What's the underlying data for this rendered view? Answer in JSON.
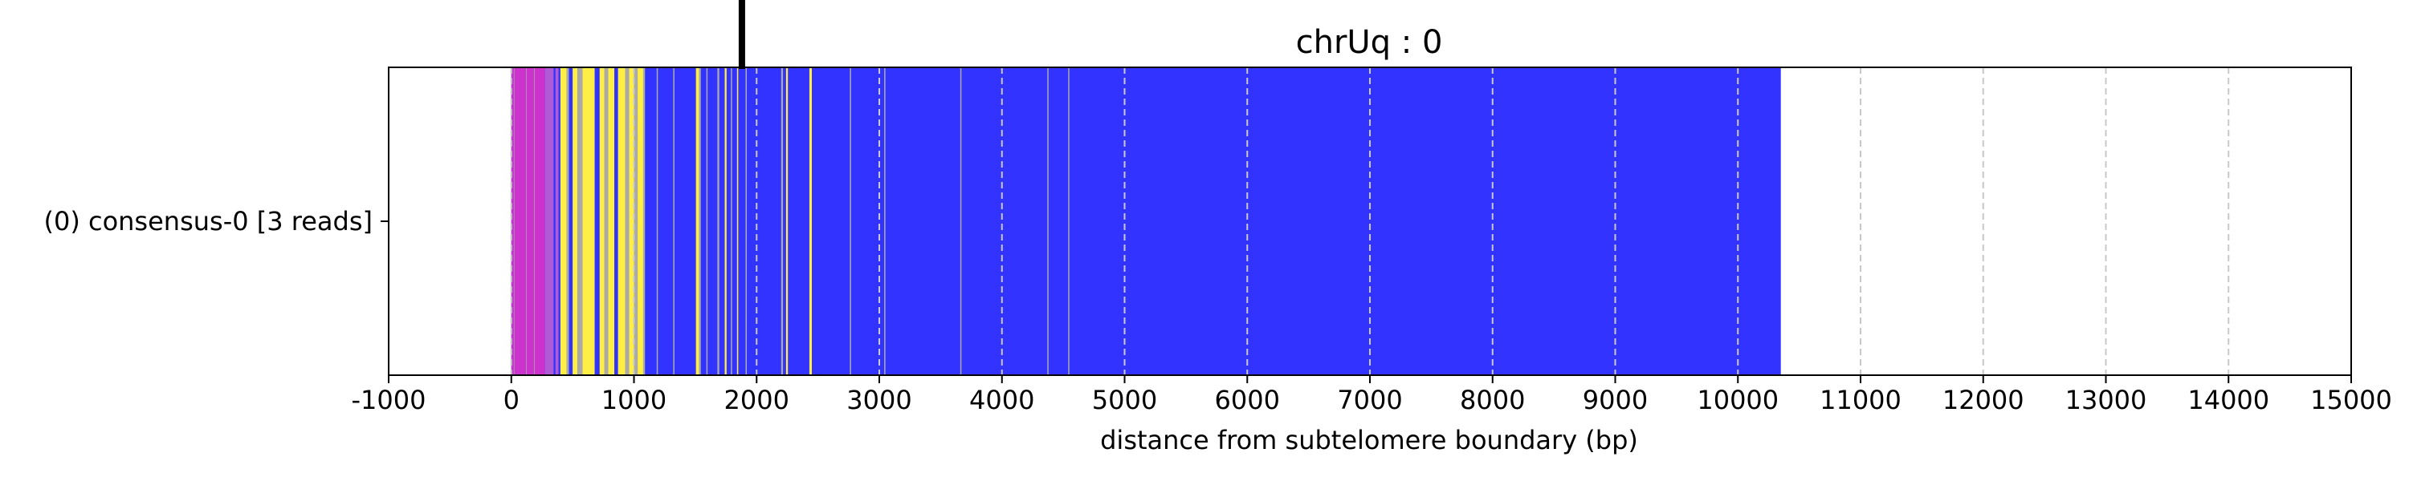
{
  "chart_data": {
    "type": "bar",
    "title": "chrUq : 0",
    "xlabel": "distance from subtelomere boundary (bp)",
    "ylabel": "",
    "xlim": [
      -1000,
      15000
    ],
    "x_ticks": [
      "-1000",
      "0",
      "1000",
      "2000",
      "3000",
      "4000",
      "5000",
      "6000",
      "7000",
      "8000",
      "9000",
      "10000",
      "11000",
      "12000",
      "13000",
      "14000",
      "15000"
    ],
    "grid": "vertical dashed lines at x ticks",
    "tracks": [
      {
        "label": "(0) consensus-0 [3 reads]",
        "start": 0,
        "end": 10350
      }
    ],
    "marker_x": 1880,
    "colors": {
      "base": "#3333ff",
      "magenta": "#cc33cc",
      "violet": "#b05bd6",
      "yellow": "#ffee44",
      "grey": "#aaaaaa"
    },
    "segments": [
      {
        "start": 0,
        "end": 20,
        "color": "#cc33cc"
      },
      {
        "start": 20,
        "end": 25,
        "color": "#aaaaaa"
      },
      {
        "start": 25,
        "end": 120,
        "color": "#cc33cc"
      },
      {
        "start": 120,
        "end": 125,
        "color": "#aaaaaa"
      },
      {
        "start": 125,
        "end": 185,
        "color": "#cc33cc"
      },
      {
        "start": 185,
        "end": 190,
        "color": "#aaaaaa"
      },
      {
        "start": 190,
        "end": 275,
        "color": "#cc33cc"
      },
      {
        "start": 275,
        "end": 345,
        "color": "#b05bd6"
      },
      {
        "start": 345,
        "end": 360,
        "color": "#3333ff"
      },
      {
        "start": 360,
        "end": 385,
        "color": "#b05bd6"
      },
      {
        "start": 385,
        "end": 400,
        "color": "#3333ff"
      },
      {
        "start": 400,
        "end": 450,
        "color": "#ffee44"
      },
      {
        "start": 450,
        "end": 470,
        "color": "#aaaaaa"
      },
      {
        "start": 470,
        "end": 500,
        "color": "#3333ff"
      },
      {
        "start": 500,
        "end": 540,
        "color": "#ffee44"
      },
      {
        "start": 540,
        "end": 580,
        "color": "#aaaaaa"
      },
      {
        "start": 580,
        "end": 680,
        "color": "#ffee44"
      },
      {
        "start": 680,
        "end": 720,
        "color": "#3333ff"
      },
      {
        "start": 720,
        "end": 760,
        "color": "#ffee44"
      },
      {
        "start": 760,
        "end": 790,
        "color": "#aaaaaa"
      },
      {
        "start": 790,
        "end": 840,
        "color": "#ffee44"
      },
      {
        "start": 840,
        "end": 870,
        "color": "#3333ff"
      },
      {
        "start": 870,
        "end": 930,
        "color": "#ffee44"
      },
      {
        "start": 930,
        "end": 960,
        "color": "#aaaaaa"
      },
      {
        "start": 960,
        "end": 1000,
        "color": "#ffee44"
      },
      {
        "start": 1000,
        "end": 1030,
        "color": "#aaaaaa"
      },
      {
        "start": 1030,
        "end": 1075,
        "color": "#ffee44"
      },
      {
        "start": 1075,
        "end": 1090,
        "color": "#aaaaaa"
      },
      {
        "start": 1185,
        "end": 1195,
        "color": "#aaaaaa"
      },
      {
        "start": 1320,
        "end": 1330,
        "color": "#aaaaaa"
      },
      {
        "start": 1505,
        "end": 1530,
        "color": "#ffee44"
      },
      {
        "start": 1530,
        "end": 1545,
        "color": "#aaaaaa"
      },
      {
        "start": 1590,
        "end": 1600,
        "color": "#aaaaaa"
      },
      {
        "start": 1680,
        "end": 1695,
        "color": "#aaaaaa"
      },
      {
        "start": 1740,
        "end": 1755,
        "color": "#ffee44"
      },
      {
        "start": 1790,
        "end": 1800,
        "color": "#aaaaaa"
      },
      {
        "start": 1840,
        "end": 1850,
        "color": "#ffee44"
      },
      {
        "start": 1910,
        "end": 1920,
        "color": "#aaaaaa"
      },
      {
        "start": 2200,
        "end": 2215,
        "color": "#aaaaaa"
      },
      {
        "start": 2240,
        "end": 2255,
        "color": "#ffee44"
      },
      {
        "start": 2430,
        "end": 2450,
        "color": "#ffee44"
      },
      {
        "start": 2760,
        "end": 2770,
        "color": "#aaaaaa"
      },
      {
        "start": 3040,
        "end": 3050,
        "color": "#aaaaaa"
      },
      {
        "start": 3660,
        "end": 3668,
        "color": "#aaaaaa"
      },
      {
        "start": 4370,
        "end": 4378,
        "color": "#aaaaaa"
      },
      {
        "start": 4540,
        "end": 4548,
        "color": "#aaaaaa"
      }
    ]
  }
}
